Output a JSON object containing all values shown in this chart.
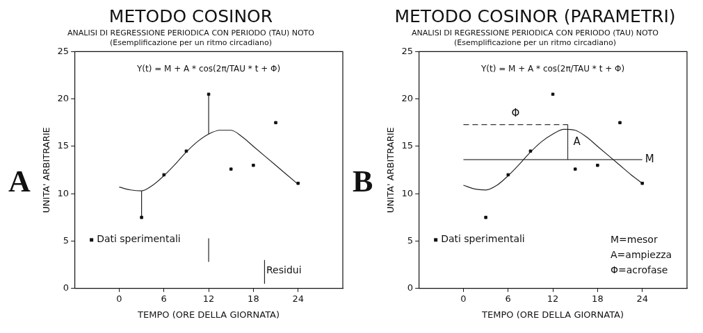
{
  "chart_data": [
    {
      "type": "scatter",
      "title": "METODO COSINOR",
      "subtitle": "ANALISI DI REGRESSIONE PERIODICA CON PERIODO (TAU) NOTO\n(Esemplificazione per un ritmo circadiano)",
      "xlabel": "TEMPO (ORE DELLA GIORNATA)",
      "ylabel": "UNITA' ARBITRARIE",
      "xlim": [
        -6,
        30
      ],
      "xticks": [
        0,
        6,
        12,
        18,
        24
      ],
      "ylim": [
        0,
        25
      ],
      "yticks": [
        0,
        5,
        10,
        15,
        20,
        25
      ],
      "grid": false,
      "legend": "bottom left",
      "annotations": [
        "Y(t) = M + A * cos(2π/TAU * t + Φ)",
        "Residui",
        "A"
      ],
      "series": [
        {
          "name": "Dati sperimentali",
          "marker": "square",
          "color": "#111111",
          "x": [
            3,
            6,
            9,
            12,
            15,
            18,
            21,
            24
          ],
          "values": [
            7.5,
            12.0,
            14.5,
            20.5,
            12.6,
            13.0,
            17.5,
            11.1
          ]
        },
        {
          "type": "line",
          "color": "#222222",
          "x": [
            0,
            1.5,
            3,
            4.5,
            6,
            7.5,
            9,
            10.5,
            12,
            13.5,
            15,
            16.5,
            18,
            19.5,
            21,
            22.5,
            24
          ],
          "values": [
            10.7,
            10.4,
            10.3,
            10.9,
            11.9,
            13.1,
            14.4,
            15.5,
            16.3,
            16.7,
            16.7,
            16.0,
            15.0,
            14.0,
            13.0,
            12.0,
            11.0
          ]
        },
        {
          "type": "line",
          "color": "#222222",
          "x": [
            3,
            3
          ],
          "values": [
            7.5,
            10.3
          ]
        },
        {
          "type": "line",
          "color": "#222222",
          "x": [
            12,
            12
          ],
          "values": [
            20.5,
            16.3
          ]
        },
        {
          "type": "line",
          "color": "#222222",
          "x": [
            12,
            12
          ],
          "values": [
            5.3,
            2.8
          ]
        },
        {
          "type": "line",
          "color": "#222222",
          "x": [
            19.5,
            19.5
          ],
          "values": [
            0.5,
            3.0
          ]
        }
      ]
    },
    {
      "type": "scatter",
      "title": "METODO COSINOR (PARAMETRI)",
      "subtitle": "ANALISI DI REGRESSIONE PERIODICA CON PERIODO (TAU) NOTO\n(Esemplificazione per un ritmo circadiano)",
      "xlabel": "TEMPO (ORE DELLA GIORNATA)",
      "ylabel": "UNITA' ARBITRARIE",
      "xlim": [
        -6,
        30
      ],
      "xticks": [
        0,
        6,
        12,
        18,
        24
      ],
      "ylim": [
        0,
        25
      ],
      "yticks": [
        0,
        5,
        10,
        15,
        20,
        25
      ],
      "grid": false,
      "legend": "bottom left",
      "annotations": [
        "Y(t) = M + A * cos(2π/TAU * t + Φ)",
        "M=mesor",
        "A=ampiezza",
        "Φ=acrofase",
        "B"
      ],
      "series": [
        {
          "name": "Dati sperimentali",
          "marker": "square",
          "color": "#111111",
          "x": [
            3,
            6,
            9,
            12,
            15,
            18,
            21,
            24
          ],
          "values": [
            7.5,
            12.0,
            14.5,
            20.5,
            12.6,
            13.0,
            17.5,
            11.1
          ]
        },
        {
          "type": "line",
          "color": "#222222",
          "x": [
            0,
            1.5,
            3,
            4.5,
            6,
            7.5,
            9,
            10.5,
            12,
            13.5,
            15,
            16.5,
            18,
            19.5,
            21,
            22.5,
            24
          ],
          "values": [
            10.9,
            10.5,
            10.4,
            10.9,
            11.9,
            13.1,
            14.4,
            15.5,
            16.3,
            16.8,
            16.7,
            16.0,
            15.0,
            14.0,
            13.0,
            12.0,
            11.1
          ]
        },
        {
          "name": "M",
          "type": "line",
          "color": "#333333",
          "x": [
            0,
            24
          ],
          "values": [
            13.6,
            13.6
          ]
        },
        {
          "name": "Φ",
          "type": "line",
          "color": "#333333",
          "line_style": "dashed",
          "x": [
            0,
            14
          ],
          "values": [
            17.3,
            17.3
          ]
        },
        {
          "name": "A",
          "type": "line",
          "color": "#333333",
          "x": [
            14,
            14
          ],
          "values": [
            13.6,
            17.3
          ]
        }
      ]
    }
  ]
}
